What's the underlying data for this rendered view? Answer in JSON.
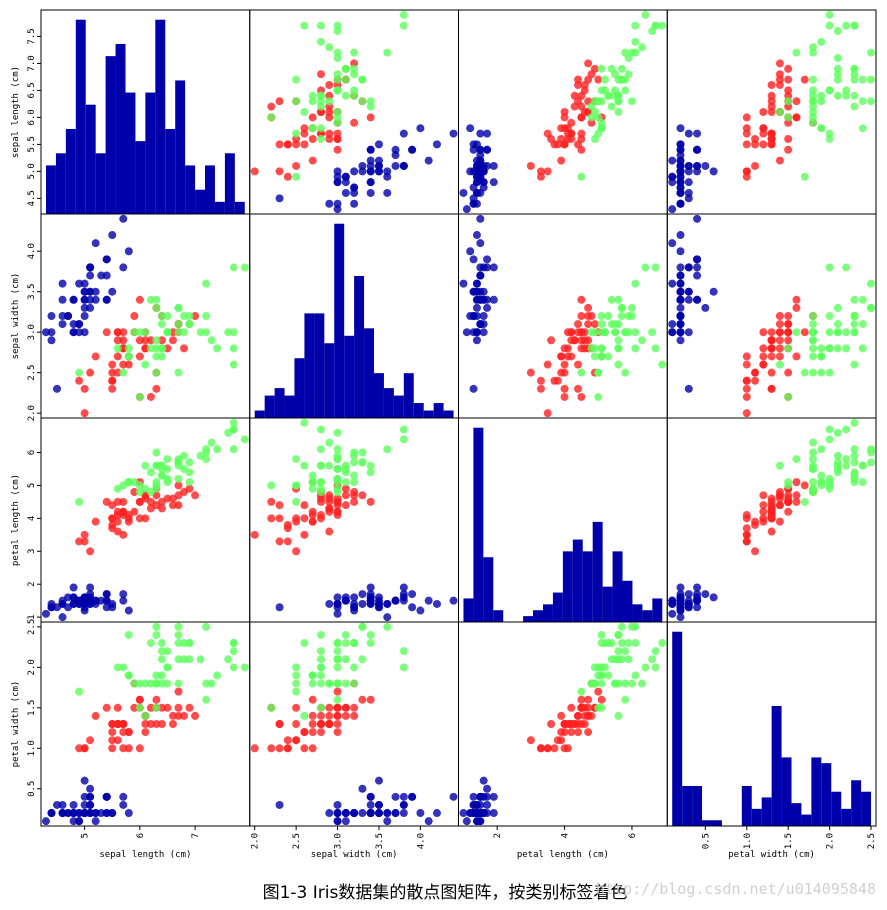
{
  "chart_data": {
    "type": "scatter_matrix",
    "caption": "图1-3 Iris数据集的散点图矩阵，按类别标签着色",
    "watermark": "http://blog.csdn.net/u014095848",
    "hist_color": "#0000aa",
    "variables": [
      {
        "label": "sepal length (cm)",
        "lim": [
          4.21,
          7.99
        ],
        "yticks": [
          4.5,
          {
            "value": 5,
            "label": "5.0"
          },
          5.5,
          {
            "value": 6,
            "label": "6.0"
          },
          6.5,
          {
            "value": 7,
            "label": "7.0"
          },
          7.5
        ],
        "xticks": [
          5,
          6,
          7
        ],
        "bins": [
          4.3,
          4.48,
          4.66,
          4.84,
          5.02,
          5.2,
          5.38,
          5.56,
          5.74,
          5.92,
          6.1,
          6.28,
          6.46,
          6.64,
          6.82,
          7.0,
          7.18,
          7.36,
          7.54,
          7.72,
          7.9
        ],
        "counts": [
          4,
          5,
          7,
          16,
          9,
          5,
          13,
          14,
          10,
          6,
          10,
          16,
          7,
          11,
          4,
          2,
          4,
          1,
          5,
          1
        ]
      },
      {
        "label": "sepal width (cm)",
        "lim": [
          1.94,
          4.46
        ],
        "yticks": [
          {
            "value": 2,
            "label": "2.0"
          },
          2.5,
          {
            "value": 3,
            "label": "3.0"
          },
          3.5,
          {
            "value": 4,
            "label": "4.0"
          }
        ],
        "xticks": [
          {
            "value": 2,
            "label": "2.0"
          },
          2.5,
          {
            "value": 3,
            "label": "3.0"
          },
          3.5,
          {
            "value": 4,
            "label": "4.0"
          }
        ],
        "bins": [
          2.0,
          2.12,
          2.24,
          2.36,
          2.48,
          2.6,
          2.72,
          2.84,
          2.96,
          3.08,
          3.2,
          3.32,
          3.44,
          3.56,
          3.68,
          3.8,
          3.92,
          4.04,
          4.16,
          4.28,
          4.4
        ],
        "counts": [
          1,
          3,
          4,
          3,
          8,
          14,
          14,
          10,
          26,
          11,
          19,
          12,
          6,
          4,
          3,
          6,
          2,
          1,
          2,
          1
        ]
      },
      {
        "label": "petal length (cm)",
        "lim": [
          0.8525,
          7.0475
        ],
        "yticks": [
          1,
          2,
          3,
          4,
          5,
          6
        ],
        "xticks": [
          2,
          4,
          6
        ],
        "bins": [
          1.0,
          1.295,
          1.59,
          1.885,
          2.18,
          2.475,
          2.77,
          3.065,
          3.36,
          3.655,
          3.95,
          4.245,
          4.54,
          4.835,
          5.13,
          5.425,
          5.72,
          6.015,
          6.31,
          6.605,
          6.9
        ],
        "counts": [
          4,
          33,
          11,
          2,
          0,
          0,
          1,
          2,
          3,
          5,
          12,
          14,
          12,
          17,
          6,
          12,
          7,
          3,
          2,
          4
        ]
      },
      {
        "label": "petal width (cm)",
        "lim": [
          0.04,
          2.56
        ],
        "yticks": [
          0.5,
          {
            "value": 1,
            "label": "1.0"
          },
          1.5,
          {
            "value": 2,
            "label": "2.0"
          },
          2.5
        ],
        "xticks": [
          0.5,
          {
            "value": 1,
            "label": "1.0"
          },
          1.5,
          {
            "value": 2,
            "label": "2.0"
          },
          2.5
        ],
        "bins": [
          0.1,
          0.22,
          0.34,
          0.46,
          0.58,
          0.7,
          0.82,
          0.94,
          1.06,
          1.18,
          1.3,
          1.42,
          1.54,
          1.66,
          1.78,
          1.9,
          2.02,
          2.14,
          2.26,
          2.38,
          2.5
        ],
        "counts": [
          34,
          7,
          7,
          1,
          1,
          0,
          0,
          7,
          3,
          5,
          21,
          12,
          4,
          2,
          12,
          11,
          6,
          3,
          8,
          6
        ]
      }
    ],
    "series": [
      {
        "color": "#0000aa",
        "points": [
          [
            5.1,
            3.5,
            1.4,
            0.2
          ],
          [
            4.9,
            3.0,
            1.4,
            0.2
          ],
          [
            4.7,
            3.2,
            1.3,
            0.2
          ],
          [
            4.6,
            3.1,
            1.5,
            0.2
          ],
          [
            5.0,
            3.6,
            1.4,
            0.2
          ],
          [
            5.4,
            3.9,
            1.7,
            0.4
          ],
          [
            4.6,
            3.4,
            1.4,
            0.3
          ],
          [
            5.0,
            3.4,
            1.5,
            0.2
          ],
          [
            4.4,
            2.9,
            1.4,
            0.2
          ],
          [
            4.9,
            3.1,
            1.5,
            0.1
          ],
          [
            5.4,
            3.7,
            1.5,
            0.2
          ],
          [
            4.8,
            3.4,
            1.6,
            0.2
          ],
          [
            4.8,
            3.0,
            1.4,
            0.1
          ],
          [
            4.3,
            3.0,
            1.1,
            0.1
          ],
          [
            5.8,
            4.0,
            1.2,
            0.2
          ],
          [
            5.7,
            4.4,
            1.5,
            0.4
          ],
          [
            5.4,
            3.9,
            1.3,
            0.4
          ],
          [
            5.1,
            3.5,
            1.4,
            0.3
          ],
          [
            5.7,
            3.8,
            1.7,
            0.3
          ],
          [
            5.1,
            3.8,
            1.5,
            0.3
          ],
          [
            5.4,
            3.4,
            1.7,
            0.2
          ],
          [
            5.1,
            3.7,
            1.5,
            0.4
          ],
          [
            4.6,
            3.6,
            1.0,
            0.2
          ],
          [
            5.1,
            3.3,
            1.7,
            0.5
          ],
          [
            4.8,
            3.4,
            1.9,
            0.2
          ],
          [
            5.0,
            3.0,
            1.6,
            0.2
          ],
          [
            5.0,
            3.4,
            1.6,
            0.4
          ],
          [
            5.2,
            3.5,
            1.5,
            0.2
          ],
          [
            5.2,
            3.4,
            1.4,
            0.2
          ],
          [
            4.7,
            3.2,
            1.6,
            0.2
          ],
          [
            4.8,
            3.1,
            1.6,
            0.2
          ],
          [
            5.4,
            3.4,
            1.5,
            0.4
          ],
          [
            5.2,
            4.1,
            1.5,
            0.1
          ],
          [
            5.5,
            4.2,
            1.4,
            0.2
          ],
          [
            4.9,
            3.1,
            1.5,
            0.2
          ],
          [
            5.0,
            3.2,
            1.2,
            0.2
          ],
          [
            5.5,
            3.5,
            1.3,
            0.2
          ],
          [
            4.9,
            3.6,
            1.4,
            0.1
          ],
          [
            4.4,
            3.0,
            1.3,
            0.2
          ],
          [
            5.1,
            3.4,
            1.5,
            0.2
          ],
          [
            5.0,
            3.5,
            1.3,
            0.3
          ],
          [
            4.5,
            2.3,
            1.3,
            0.3
          ],
          [
            4.4,
            3.2,
            1.3,
            0.2
          ],
          [
            5.0,
            3.5,
            1.6,
            0.6
          ],
          [
            5.1,
            3.8,
            1.9,
            0.4
          ],
          [
            4.8,
            3.0,
            1.4,
            0.3
          ],
          [
            5.1,
            3.8,
            1.6,
            0.2
          ],
          [
            4.6,
            3.2,
            1.4,
            0.2
          ],
          [
            5.3,
            3.7,
            1.5,
            0.2
          ],
          [
            5.0,
            3.3,
            1.4,
            0.2
          ]
        ]
      },
      {
        "color": "#ff2020",
        "points": [
          [
            7.0,
            3.2,
            4.7,
            1.4
          ],
          [
            6.4,
            3.2,
            4.5,
            1.5
          ],
          [
            6.9,
            3.1,
            4.9,
            1.5
          ],
          [
            5.5,
            2.3,
            4.0,
            1.3
          ],
          [
            6.5,
            2.8,
            4.6,
            1.5
          ],
          [
            5.7,
            2.8,
            4.5,
            1.3
          ],
          [
            6.3,
            3.3,
            4.7,
            1.6
          ],
          [
            4.9,
            2.4,
            3.3,
            1.0
          ],
          [
            6.6,
            2.9,
            4.6,
            1.3
          ],
          [
            5.2,
            2.7,
            3.9,
            1.4
          ],
          [
            5.0,
            2.0,
            3.5,
            1.0
          ],
          [
            5.9,
            3.0,
            4.2,
            1.5
          ],
          [
            6.0,
            2.2,
            4.0,
            1.0
          ],
          [
            6.1,
            2.9,
            4.7,
            1.4
          ],
          [
            5.6,
            2.9,
            3.6,
            1.3
          ],
          [
            6.7,
            3.1,
            4.4,
            1.4
          ],
          [
            5.6,
            3.0,
            4.5,
            1.5
          ],
          [
            5.8,
            2.7,
            4.1,
            1.0
          ],
          [
            6.2,
            2.2,
            4.5,
            1.5
          ],
          [
            5.6,
            2.5,
            3.9,
            1.1
          ],
          [
            5.9,
            3.2,
            4.8,
            1.8
          ],
          [
            6.1,
            2.8,
            4.0,
            1.3
          ],
          [
            6.3,
            2.5,
            4.9,
            1.5
          ],
          [
            6.1,
            2.8,
            4.7,
            1.2
          ],
          [
            6.4,
            2.9,
            4.3,
            1.3
          ],
          [
            6.6,
            3.0,
            4.4,
            1.4
          ],
          [
            6.8,
            2.8,
            4.8,
            1.4
          ],
          [
            6.7,
            3.0,
            5.0,
            1.7
          ],
          [
            6.0,
            2.9,
            4.5,
            1.5
          ],
          [
            5.7,
            2.6,
            3.5,
            1.0
          ],
          [
            5.5,
            2.4,
            3.8,
            1.1
          ],
          [
            5.5,
            2.4,
            3.7,
            1.0
          ],
          [
            5.8,
            2.7,
            3.9,
            1.2
          ],
          [
            6.0,
            2.7,
            5.1,
            1.6
          ],
          [
            5.4,
            3.0,
            4.5,
            1.5
          ],
          [
            6.0,
            3.4,
            4.5,
            1.6
          ],
          [
            6.7,
            3.1,
            4.7,
            1.5
          ],
          [
            6.3,
            2.3,
            4.4,
            1.3
          ],
          [
            5.6,
            3.0,
            4.1,
            1.3
          ],
          [
            5.5,
            2.5,
            4.0,
            1.3
          ],
          [
            5.5,
            2.6,
            4.4,
            1.2
          ],
          [
            6.1,
            3.0,
            4.6,
            1.4
          ],
          [
            5.8,
            2.6,
            4.0,
            1.2
          ],
          [
            5.0,
            2.3,
            3.3,
            1.0
          ],
          [
            5.6,
            2.7,
            4.2,
            1.3
          ],
          [
            5.7,
            3.0,
            4.2,
            1.2
          ],
          [
            5.7,
            2.9,
            4.2,
            1.3
          ],
          [
            6.2,
            2.9,
            4.3,
            1.3
          ],
          [
            5.1,
            2.5,
            3.0,
            1.1
          ],
          [
            5.7,
            2.8,
            4.1,
            1.3
          ]
        ]
      },
      {
        "color": "#5cff5c",
        "points": [
          [
            6.3,
            3.3,
            6.0,
            2.5
          ],
          [
            5.8,
            2.7,
            5.1,
            1.9
          ],
          [
            7.1,
            3.0,
            5.9,
            2.1
          ],
          [
            6.3,
            2.9,
            5.6,
            1.8
          ],
          [
            6.5,
            3.0,
            5.8,
            2.2
          ],
          [
            7.6,
            3.0,
            6.6,
            2.1
          ],
          [
            4.9,
            2.5,
            4.5,
            1.7
          ],
          [
            7.3,
            2.9,
            6.3,
            1.8
          ],
          [
            6.7,
            2.5,
            5.8,
            1.8
          ],
          [
            7.2,
            3.6,
            6.1,
            2.5
          ],
          [
            6.5,
            3.2,
            5.1,
            2.0
          ],
          [
            6.4,
            2.7,
            5.3,
            1.9
          ],
          [
            6.8,
            3.0,
            5.5,
            2.1
          ],
          [
            5.7,
            2.5,
            5.0,
            2.0
          ],
          [
            5.8,
            2.8,
            5.1,
            2.4
          ],
          [
            6.4,
            3.2,
            5.3,
            2.3
          ],
          [
            6.5,
            3.0,
            5.5,
            1.8
          ],
          [
            7.7,
            3.8,
            6.7,
            2.2
          ],
          [
            7.7,
            2.6,
            6.9,
            2.3
          ],
          [
            6.0,
            2.2,
            5.0,
            1.5
          ],
          [
            6.9,
            3.2,
            5.7,
            2.3
          ],
          [
            5.6,
            2.8,
            4.9,
            2.0
          ],
          [
            7.7,
            2.8,
            6.7,
            2.0
          ],
          [
            6.3,
            2.7,
            4.9,
            1.8
          ],
          [
            6.7,
            3.3,
            5.7,
            2.1
          ],
          [
            7.2,
            3.2,
            6.0,
            1.8
          ],
          [
            6.2,
            2.8,
            4.8,
            1.8
          ],
          [
            6.1,
            3.0,
            4.9,
            1.8
          ],
          [
            6.4,
            2.8,
            5.6,
            2.1
          ],
          [
            7.2,
            3.0,
            5.8,
            1.6
          ],
          [
            7.4,
            2.8,
            6.1,
            1.9
          ],
          [
            7.9,
            3.8,
            6.4,
            2.0
          ],
          [
            6.4,
            2.8,
            5.6,
            2.2
          ],
          [
            6.3,
            2.8,
            5.1,
            1.5
          ],
          [
            6.1,
            2.6,
            5.6,
            1.4
          ],
          [
            7.7,
            3.0,
            6.1,
            2.3
          ],
          [
            6.3,
            3.4,
            5.6,
            2.4
          ],
          [
            6.4,
            3.1,
            5.5,
            1.8
          ],
          [
            6.0,
            3.0,
            4.8,
            1.8
          ],
          [
            6.9,
            3.1,
            5.4,
            2.1
          ],
          [
            6.7,
            3.1,
            5.6,
            2.4
          ],
          [
            6.9,
            3.1,
            5.1,
            2.3
          ],
          [
            5.8,
            2.7,
            5.1,
            1.9
          ],
          [
            6.8,
            3.2,
            5.9,
            2.3
          ],
          [
            6.7,
            3.3,
            5.7,
            2.5
          ],
          [
            6.7,
            3.0,
            5.2,
            2.3
          ],
          [
            6.3,
            2.5,
            5.0,
            1.9
          ],
          [
            6.5,
            3.0,
            5.2,
            2.0
          ],
          [
            6.2,
            3.4,
            5.4,
            2.3
          ],
          [
            5.9,
            3.0,
            5.1,
            1.8
          ]
        ]
      }
    ]
  }
}
